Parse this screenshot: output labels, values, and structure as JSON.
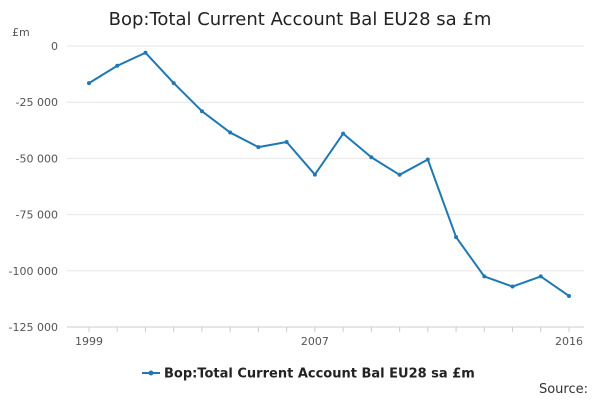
{
  "chart_data": {
    "type": "line",
    "title": "Bop:Total Current Account Bal EU28 sa £m",
    "y_unit": "£m",
    "x": [
      1999,
      2000,
      2001,
      2002,
      2003,
      2004,
      2005,
      2006,
      2007,
      2008,
      2009,
      2010,
      2011,
      2012,
      2013,
      2014,
      2015,
      2016
    ],
    "x_tick_labels": [
      "1999",
      "2007",
      "2016"
    ],
    "x_tick_values": [
      1999,
      2007,
      2016
    ],
    "series": [
      {
        "name": "Bop:Total Current Account Bal EU28 sa £m",
        "color": "#1f78b4",
        "values": [
          -16500,
          -8800,
          -3000,
          -16500,
          -29000,
          -38500,
          -45000,
          -42700,
          -57200,
          -39000,
          -49500,
          -57300,
          -50500,
          -85000,
          -102500,
          -107000,
          -102500,
          -111200
        ]
      }
    ],
    "y_ticks": [
      0,
      -25000,
      -50000,
      -75000,
      -100000,
      -125000
    ],
    "y_tick_labels": [
      "0",
      "-25 000",
      "-50 000",
      "-75 000",
      "-100 000",
      "-125 000"
    ],
    "ylim": [
      -125000,
      0
    ],
    "xlim": [
      1999,
      2016
    ],
    "grid": true,
    "legend_position": "bottom",
    "source_text": "Source:"
  }
}
